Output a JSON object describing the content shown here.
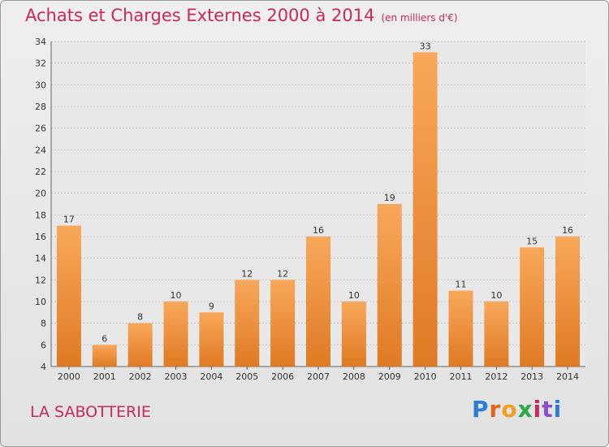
{
  "title": "Achats et Charges Externes 2000 à 2014",
  "subtitle": "(en milliers d'€)",
  "commune": "LA SABOTTERIE",
  "logo": {
    "p": "P",
    "r": "r",
    "o": "o",
    "x": "x",
    "i": "i",
    "t": "t",
    "i2": "i"
  },
  "colors": {
    "bar_top": "#f8a85a",
    "bar_bottom": "#e07a24",
    "title": "#c8285a"
  },
  "chart_data": {
    "type": "bar",
    "categories": [
      "2000",
      "2001",
      "2002",
      "2003",
      "2004",
      "2005",
      "2006",
      "2007",
      "2008",
      "2009",
      "2010",
      "2011",
      "2012",
      "2013",
      "2014"
    ],
    "values": [
      17,
      6,
      8,
      10,
      9,
      12,
      12,
      16,
      10,
      19,
      33,
      11,
      10,
      15,
      16
    ],
    "ylim": [
      4,
      34
    ],
    "yticks": [
      4,
      6,
      8,
      10,
      12,
      14,
      16,
      18,
      20,
      22,
      24,
      26,
      28,
      30,
      32,
      34
    ],
    "grid": true
  }
}
